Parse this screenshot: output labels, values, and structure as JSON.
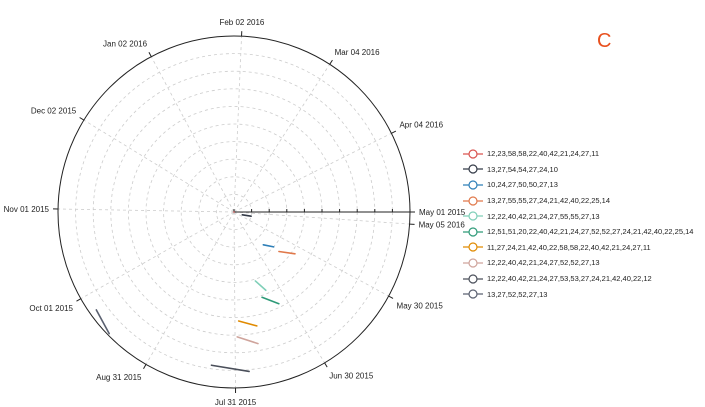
{
  "corner_letter": "C",
  "chart_data": {
    "type": "polar-line",
    "angular_axis": {
      "type": "date",
      "tick_labels": [
        "May 01 2015",
        "May 30 2015",
        "Jun 30 2015",
        "Jul 31 2015",
        "Aug 31 2015",
        "Oct 01 2015",
        "Nov 01 2015",
        "Dec 02 2015",
        "Jan 02 2016",
        "Feb 02 2016",
        "Mar 04 2016",
        "Apr 04 2016",
        "May 05 2016"
      ],
      "tick_dates": [
        "2015-05-01",
        "2015-05-30",
        "2015-06-30",
        "2015-07-31",
        "2015-08-31",
        "2015-10-01",
        "2015-11-01",
        "2015-12-02",
        "2016-01-02",
        "2016-02-02",
        "2016-03-04",
        "2016-04-04",
        "2016-05-05"
      ],
      "direction": "clockwise",
      "zero_at": "east"
    },
    "radial_axis": {
      "tick_labels": [],
      "range": [
        0,
        1
      ],
      "grid": true
    },
    "grid": true,
    "legend_position": "right",
    "series": [
      {
        "name": "12,23,58,58,22,40,42,21,24,27,11",
        "color": "#d9534f",
        "dates": [
          "2015-08-20",
          "2015-08-22"
        ],
        "r": [
          0.0,
          0.0
        ]
      },
      {
        "name": "13,27,54,54,27,24,10",
        "color": "#333a47",
        "dates": [
          "2015-05-15",
          "2015-05-20"
        ],
        "r": [
          0.1,
          0.05
        ]
      },
      {
        "name": "10,24,27,50,50,27,13",
        "color": "#2e7fb8",
        "dates": [
          "2015-06-12",
          "2015-06-19"
        ],
        "r": [
          0.3,
          0.25
        ]
      },
      {
        "name": "13,27,55,55,27,24,21,42,40,22,25,14",
        "color": "#e0784a",
        "dates": [
          "2015-06-05",
          "2015-06-12"
        ],
        "r": [
          0.42,
          0.34
        ]
      },
      {
        "name": "12,22,40,42,21,24,27,55,55,27,13",
        "color": "#7fcfb8",
        "dates": [
          "2015-07-09",
          "2015-07-14"
        ],
        "r": [
          0.48,
          0.41
        ]
      },
      {
        "name": "12,51,51,20,22,40,42,21,24,27,52,52,27,24,21,42,40,22,25,14",
        "color": "#2e9a78",
        "dates": [
          "2015-07-05",
          "2015-07-13"
        ],
        "r": [
          0.58,
          0.51
        ]
      },
      {
        "name": "11,27,24,21,42,40,22,58,58,22,40,42,21,24,27,11",
        "color": "#e08a00",
        "dates": [
          "2015-07-20",
          "2015-07-29"
        ],
        "r": [
          0.66,
          0.62
        ]
      },
      {
        "name": "12,22,40,42,21,24,27,52,52,27,13",
        "color": "#cfa49c",
        "dates": [
          "2015-07-21",
          "2015-07-30"
        ],
        "r": [
          0.76,
          0.71
        ]
      },
      {
        "name": "12,22,40,42,21,24,27,53,53,27,24,21,42,40,22,12",
        "color": "#4a4f5a",
        "dates": [
          "2015-07-26",
          "2015-08-09"
        ],
        "r": [
          0.91,
          0.88
        ]
      },
      {
        "name": "13,27,52,52,27,13",
        "color": "#5a6070",
        "dates": [
          "2015-09-16",
          "2015-09-25"
        ],
        "r": [
          0.99,
          0.96
        ]
      }
    ]
  }
}
